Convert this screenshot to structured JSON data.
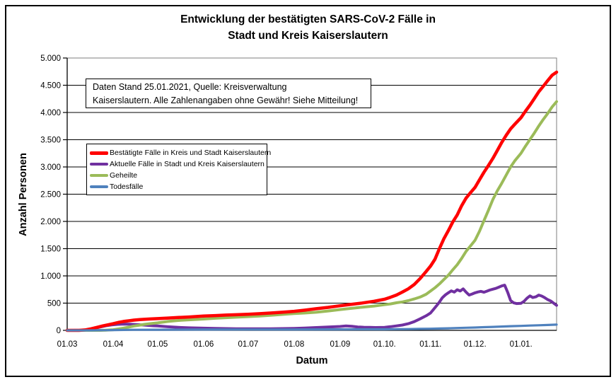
{
  "frame": {
    "border_color": "#000000",
    "background": "#ffffff"
  },
  "title_line1": "Entwicklung der bestätigten SARS-CoV-2 Fälle in",
  "title_line2": "Stadt und Kreis Kaiserslautern",
  "note": {
    "line1": "Daten Stand 25.01.2021, Quelle: Kreisverwaltung",
    "line2": "Kaiserslautern. Alle Zahlenangaben ohne Gewähr! Siehe Mitteilung!"
  },
  "chart_data": {
    "type": "line",
    "title": "Entwicklung der bestätigten SARS-CoV-2 Fälle in Stadt und Kreis Kaiserslautern",
    "xlabel": "Datum",
    "ylabel": "Anzahl Personen",
    "ylim": [
      0,
      5000
    ],
    "y_tick_step": 500,
    "y_tick_labels": [
      "0",
      "500",
      "1.000",
      "1.500",
      "2.000",
      "2.500",
      "3.000",
      "3.500",
      "4.000",
      "4.500",
      "5.000"
    ],
    "x_unit": "days since 01.03.2020",
    "x_range_days": 330,
    "x_tick_labels": [
      {
        "label": "01.03",
        "day": 0
      },
      {
        "label": "01.04",
        "day": 31
      },
      {
        "label": "01.05",
        "day": 61
      },
      {
        "label": "01.06",
        "day": 92
      },
      {
        "label": "01.07",
        "day": 122
      },
      {
        "label": "01.08",
        "day": 153
      },
      {
        "label": "01.09",
        "day": 184
      },
      {
        "label": "01.10.",
        "day": 214
      },
      {
        "label": "01.11.",
        "day": 245
      },
      {
        "label": "01.12.",
        "day": 275
      },
      {
        "label": "01.01.",
        "day": 306
      }
    ],
    "grid": true,
    "legend_position": "inside-top-left",
    "series": [
      {
        "id": "bestaetigte-faelle",
        "name": "Bestätigte Fälle in Kreis und Stadt Kaiserslautern",
        "color": "#FF0000",
        "line_width": 4.5,
        "z": 3,
        "points": [
          [
            0,
            0
          ],
          [
            8,
            0
          ],
          [
            12,
            8
          ],
          [
            16,
            28
          ],
          [
            20,
            55
          ],
          [
            24,
            82
          ],
          [
            28,
            105
          ],
          [
            31,
            122
          ],
          [
            35,
            148
          ],
          [
            38,
            163
          ],
          [
            42,
            178
          ],
          [
            45,
            188
          ],
          [
            49,
            197
          ],
          [
            52,
            203
          ],
          [
            56,
            209
          ],
          [
            61,
            215
          ],
          [
            68,
            226
          ],
          [
            75,
            236
          ],
          [
            82,
            245
          ],
          [
            92,
            262
          ],
          [
            100,
            272
          ],
          [
            107,
            280
          ],
          [
            114,
            287
          ],
          [
            122,
            295
          ],
          [
            130,
            306
          ],
          [
            137,
            318
          ],
          [
            145,
            332
          ],
          [
            153,
            350
          ],
          [
            160,
            370
          ],
          [
            168,
            398
          ],
          [
            176,
            422
          ],
          [
            184,
            452
          ],
          [
            191,
            475
          ],
          [
            199,
            502
          ],
          [
            207,
            535
          ],
          [
            214,
            572
          ],
          [
            218,
            608
          ],
          [
            222,
            648
          ],
          [
            226,
            702
          ],
          [
            230,
            762
          ],
          [
            234,
            842
          ],
          [
            238,
            952
          ],
          [
            242,
            1080
          ],
          [
            245,
            1180
          ],
          [
            248,
            1305
          ],
          [
            251,
            1500
          ],
          [
            254,
            1680
          ],
          [
            257,
            1830
          ],
          [
            260,
            1990
          ],
          [
            263,
            2120
          ],
          [
            266,
            2290
          ],
          [
            269,
            2430
          ],
          [
            272,
            2530
          ],
          [
            275,
            2625
          ],
          [
            278,
            2765
          ],
          [
            281,
            2900
          ],
          [
            284,
            3025
          ],
          [
            287,
            3155
          ],
          [
            290,
            3300
          ],
          [
            293,
            3450
          ],
          [
            296,
            3580
          ],
          [
            299,
            3700
          ],
          [
            302,
            3790
          ],
          [
            306,
            3905
          ],
          [
            309,
            4025
          ],
          [
            312,
            4135
          ],
          [
            315,
            4255
          ],
          [
            318,
            4380
          ],
          [
            321,
            4480
          ],
          [
            324,
            4585
          ],
          [
            327,
            4685
          ],
          [
            330,
            4740
          ]
        ]
      },
      {
        "id": "aktuelle-faelle",
        "name": "Aktuelle Fälle in Stadt und Kreis Kaiserslautern",
        "color": "#7030A0",
        "line_width": 4,
        "z": 1,
        "points": [
          [
            0,
            0
          ],
          [
            10,
            2
          ],
          [
            14,
            12
          ],
          [
            18,
            35
          ],
          [
            22,
            60
          ],
          [
            26,
            85
          ],
          [
            30,
            100
          ],
          [
            34,
            110
          ],
          [
            38,
            115
          ],
          [
            42,
            113
          ],
          [
            46,
            108
          ],
          [
            50,
            100
          ],
          [
            54,
            92
          ],
          [
            58,
            85
          ],
          [
            61,
            80
          ],
          [
            68,
            66
          ],
          [
            75,
            55
          ],
          [
            82,
            47
          ],
          [
            92,
            40
          ],
          [
            100,
            35
          ],
          [
            107,
            32
          ],
          [
            114,
            30
          ],
          [
            122,
            28
          ],
          [
            130,
            28
          ],
          [
            137,
            30
          ],
          [
            145,
            33
          ],
          [
            153,
            37
          ],
          [
            160,
            43
          ],
          [
            168,
            52
          ],
          [
            176,
            62
          ],
          [
            184,
            72
          ],
          [
            188,
            80
          ],
          [
            192,
            74
          ],
          [
            196,
            62
          ],
          [
            200,
            57
          ],
          [
            204,
            54
          ],
          [
            208,
            52
          ],
          [
            214,
            56
          ],
          [
            218,
            68
          ],
          [
            222,
            82
          ],
          [
            226,
            98
          ],
          [
            230,
            122
          ],
          [
            234,
            160
          ],
          [
            238,
            212
          ],
          [
            242,
            268
          ],
          [
            245,
            320
          ],
          [
            247,
            385
          ],
          [
            249,
            450
          ],
          [
            251,
            520
          ],
          [
            253,
            600
          ],
          [
            255,
            650
          ],
          [
            257,
            690
          ],
          [
            259,
            725
          ],
          [
            261,
            702
          ],
          [
            263,
            745
          ],
          [
            265,
            722
          ],
          [
            267,
            762
          ],
          [
            269,
            700
          ],
          [
            271,
            648
          ],
          [
            273,
            668
          ],
          [
            275,
            690
          ],
          [
            277,
            705
          ],
          [
            279,
            716
          ],
          [
            281,
            700
          ],
          [
            283,
            720
          ],
          [
            285,
            740
          ],
          [
            287,
            756
          ],
          [
            289,
            770
          ],
          [
            291,
            792
          ],
          [
            293,
            815
          ],
          [
            295,
            830
          ],
          [
            297,
            700
          ],
          [
            299,
            548
          ],
          [
            301,
            505
          ],
          [
            303,
            492
          ],
          [
            306,
            497
          ],
          [
            308,
            532
          ],
          [
            310,
            590
          ],
          [
            312,
            632
          ],
          [
            314,
            602
          ],
          [
            316,
            616
          ],
          [
            318,
            648
          ],
          [
            320,
            630
          ],
          [
            322,
            600
          ],
          [
            324,
            565
          ],
          [
            326,
            540
          ],
          [
            328,
            500
          ],
          [
            330,
            460
          ]
        ]
      },
      {
        "id": "geheilte",
        "name": "Geheilte",
        "color": "#9BBB59",
        "line_width": 4,
        "z": 2,
        "points": [
          [
            0,
            0
          ],
          [
            22,
            0
          ],
          [
            26,
            4
          ],
          [
            31,
            12
          ],
          [
            35,
            28
          ],
          [
            38,
            42
          ],
          [
            42,
            62
          ],
          [
            45,
            80
          ],
          [
            49,
            96
          ],
          [
            52,
            110
          ],
          [
            56,
            124
          ],
          [
            61,
            138
          ],
          [
            68,
            163
          ],
          [
            75,
            182
          ],
          [
            82,
            194
          ],
          [
            92,
            208
          ],
          [
            100,
            222
          ],
          [
            107,
            232
          ],
          [
            114,
            242
          ],
          [
            122,
            252
          ],
          [
            130,
            264
          ],
          [
            137,
            277
          ],
          [
            145,
            292
          ],
          [
            153,
            308
          ],
          [
            160,
            318
          ],
          [
            168,
            333
          ],
          [
            176,
            356
          ],
          [
            184,
            382
          ],
          [
            191,
            402
          ],
          [
            199,
            426
          ],
          [
            207,
            447
          ],
          [
            214,
            472
          ],
          [
            218,
            486
          ],
          [
            222,
            506
          ],
          [
            226,
            522
          ],
          [
            230,
            546
          ],
          [
            234,
            576
          ],
          [
            238,
            612
          ],
          [
            242,
            662
          ],
          [
            245,
            722
          ],
          [
            248,
            782
          ],
          [
            251,
            852
          ],
          [
            254,
            932
          ],
          [
            257,
            1012
          ],
          [
            260,
            1112
          ],
          [
            263,
            1205
          ],
          [
            266,
            1322
          ],
          [
            269,
            1452
          ],
          [
            272,
            1552
          ],
          [
            275,
            1655
          ],
          [
            278,
            1820
          ],
          [
            281,
            2010
          ],
          [
            284,
            2200
          ],
          [
            287,
            2400
          ],
          [
            290,
            2560
          ],
          [
            293,
            2700
          ],
          [
            296,
            2850
          ],
          [
            299,
            3000
          ],
          [
            302,
            3120
          ],
          [
            306,
            3252
          ],
          [
            309,
            3382
          ],
          [
            312,
            3502
          ],
          [
            315,
            3622
          ],
          [
            318,
            3752
          ],
          [
            321,
            3872
          ],
          [
            324,
            3982
          ],
          [
            327,
            4102
          ],
          [
            330,
            4200
          ]
        ]
      },
      {
        "id": "todesfaelle",
        "name": "Todesfälle",
        "color": "#4F81BD",
        "line_width": 3.2,
        "z": 4,
        "points": [
          [
            0,
            0
          ],
          [
            14,
            0
          ],
          [
            20,
            1
          ],
          [
            25,
            3
          ],
          [
            31,
            5
          ],
          [
            38,
            8
          ],
          [
            45,
            10
          ],
          [
            52,
            11
          ],
          [
            61,
            12
          ],
          [
            75,
            13
          ],
          [
            92,
            14
          ],
          [
            122,
            15
          ],
          [
            153,
            16
          ],
          [
            184,
            18
          ],
          [
            199,
            19
          ],
          [
            214,
            20
          ],
          [
            222,
            22
          ],
          [
            230,
            24
          ],
          [
            238,
            27
          ],
          [
            245,
            30
          ],
          [
            251,
            34
          ],
          [
            257,
            38
          ],
          [
            263,
            43
          ],
          [
            269,
            48
          ],
          [
            275,
            52
          ],
          [
            281,
            58
          ],
          [
            287,
            64
          ],
          [
            293,
            70
          ],
          [
            299,
            76
          ],
          [
            306,
            82
          ],
          [
            312,
            88
          ],
          [
            318,
            93
          ],
          [
            324,
            99
          ],
          [
            330,
            105
          ]
        ]
      }
    ]
  }
}
